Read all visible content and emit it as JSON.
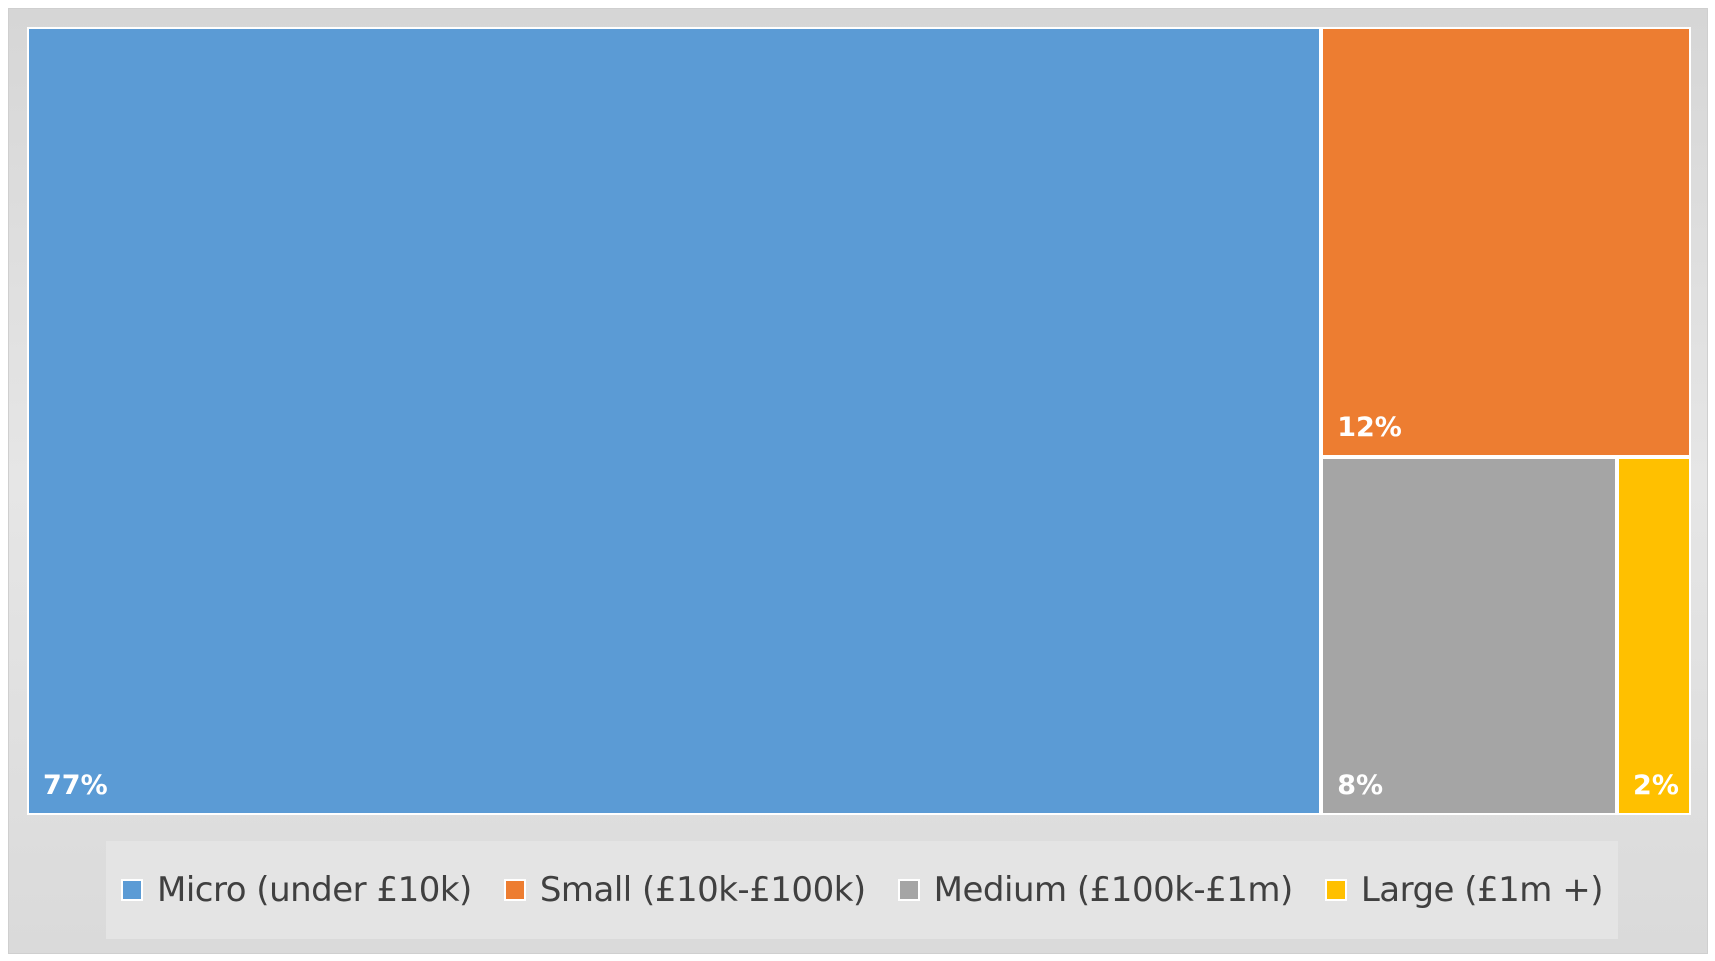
{
  "chart_data": {
    "type": "treemap",
    "title": "",
    "categories": [
      "Micro (under £10k)",
      "Small (£10k-£100k)",
      "Medium (£100k-£1m)",
      "Large (£1m +)"
    ],
    "values": [
      77,
      12,
      8,
      2
    ],
    "value_labels": [
      "77%",
      "12%",
      "8%",
      "2%"
    ],
    "colors": [
      "#5b9bd5",
      "#ed7d31",
      "#a5a5a5",
      "#ffc000"
    ],
    "legend_position": "bottom"
  }
}
